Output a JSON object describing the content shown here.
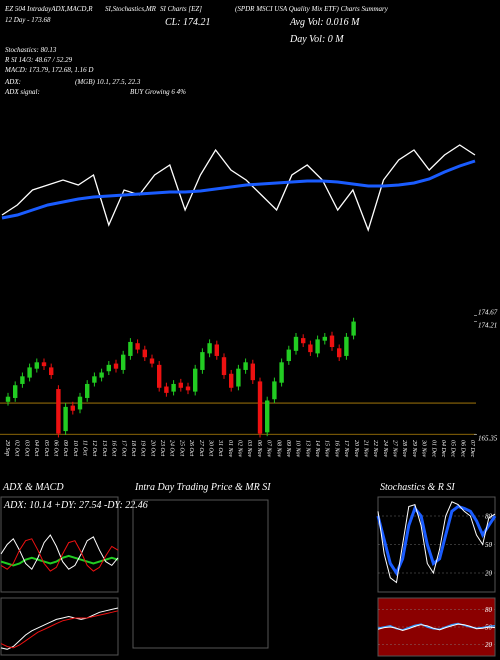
{
  "header": {
    "texts": [
      "EZ 504 IntradayADX,MACD,R",
      "SI,Stochastics,MR",
      "SI Charts [EZ]",
      "(SPDR MSCI USA Quality Mix ETF) Charts Summary",
      "12 Day - 173.68",
      "CL: 174.21",
      "Avg Vol: 0.016 M",
      "Day Vol: 0 M",
      "Stochastics: 80.13",
      "R SI 14/3: 48.67 / 52.29",
      "MACD: 173.79, 172.68, 1.16 D",
      "ADX:",
      "(MGB) 10.1, 27.5, 22.3",
      "ADX  signal:",
      "BUY Growing 6 4%"
    ]
  },
  "chart_data": [
    {
      "type": "line",
      "ylim": [
        163,
        177
      ],
      "series": [
        {
          "color": "#ffffff",
          "line_width": 1.3,
          "values": [
            168.5,
            169.5,
            171,
            171.5,
            172,
            171.5,
            172.5,
            167.5,
            171,
            170.5,
            172.5,
            173.5,
            169,
            172.5,
            175,
            173,
            172,
            170.5,
            169,
            172.5,
            173.5,
            172,
            169,
            171,
            167,
            172,
            174,
            175,
            173,
            174.5,
            175.5,
            174.5
          ]
        },
        {
          "color": "#1a5cff",
          "line_width": 3,
          "values": [
            168.2,
            168.5,
            169,
            169.5,
            169.8,
            170.1,
            170.3,
            170.4,
            170.5,
            170.6,
            170.7,
            170.8,
            170.8,
            170.9,
            171.1,
            171.3,
            171.5,
            171.6,
            171.7,
            171.8,
            171.9,
            171.9,
            171.8,
            171.6,
            171.4,
            171.4,
            171.5,
            171.7,
            172.1,
            172.8,
            173.4,
            173.9
          ]
        }
      ]
    },
    {
      "type": "candlestick",
      "ylim": [
        164.9,
        175.5
      ],
      "yticks": [
        174.67,
        174.21,
        165.35
      ],
      "hlines": [
        167.8,
        165.35
      ],
      "hline_color": "#b8860b",
      "up_color": "#22cc22",
      "down_color": "#ee1111",
      "categories": [
        "29 Sep",
        "02 Oct",
        "03 Oct",
        "04 Oct",
        "05 Oct",
        "06 Oct",
        "09 Oct",
        "10 Oct",
        "11 Oct",
        "12 Oct",
        "13 Oct",
        "16 Oct",
        "17 Oct",
        "18 Oct",
        "19 Oct",
        "20 Oct",
        "23 Oct",
        "24 Oct",
        "25 Oct",
        "26 Oct",
        "27 Oct",
        "30 Oct",
        "31 Oct",
        "01 Nov",
        "02 Nov",
        "03 Nov",
        "06 Nov",
        "07 Nov",
        "08 Nov",
        "09 Nov",
        "10 Nov",
        "13 Nov",
        "14 Nov",
        "15 Nov",
        "16 Nov",
        "17 Nov",
        "20 Nov",
        "21 Nov",
        "22 Nov",
        "24 Nov",
        "27 Nov",
        "28 Nov",
        "29 Nov",
        "30 Nov",
        "01 Dec",
        "04 Dec",
        "05 Dec",
        "06 Dec",
        "07 Dec"
      ],
      "open": [
        167.9,
        168.2,
        169.3,
        169.8,
        170.5,
        171.0,
        170.6,
        168.9,
        165.6,
        167.6,
        167.3,
        168.2,
        169.4,
        169.8,
        170.3,
        170.9,
        170.4,
        171.5,
        172.5,
        172.0,
        171.3,
        170.8,
        169.1,
        168.7,
        169.4,
        169.1,
        168.7,
        170.4,
        171.7,
        172.4,
        171.4,
        170.1,
        169.1,
        170.4,
        170.9,
        169.5,
        165.5,
        168.1,
        169.4,
        171.1,
        171.9,
        172.9,
        172.4,
        171.7,
        172.7,
        173.1,
        172.1,
        171.5,
        173.1
      ],
      "high": [
        168.6,
        169.5,
        170.2,
        170.9,
        171.3,
        171.3,
        170.9,
        169.2,
        167.8,
        167.9,
        168.6,
        169.6,
        170.2,
        170.5,
        171.1,
        171.2,
        171.9,
        172.9,
        172.8,
        172.3,
        171.6,
        171.1,
        169.4,
        169.6,
        169.7,
        169.4,
        170.8,
        172.1,
        172.8,
        172.7,
        171.7,
        170.4,
        170.8,
        171.3,
        171.2,
        169.8,
        168.3,
        169.8,
        171.3,
        172.3,
        173.3,
        173.2,
        172.7,
        173.1,
        173.3,
        173.4,
        172.4,
        173.3,
        174.5
      ],
      "low": [
        167.6,
        167.9,
        169.0,
        169.5,
        170.2,
        170.4,
        169.7,
        165.1,
        165.3,
        166.9,
        167.0,
        167.9,
        169.1,
        169.5,
        170.0,
        170.2,
        170.1,
        171.2,
        171.7,
        171.1,
        170.6,
        168.7,
        168.3,
        168.4,
        168.7,
        168.5,
        168.4,
        170.1,
        171.4,
        171.2,
        169.7,
        168.7,
        168.8,
        170.1,
        169.3,
        165.1,
        165.2,
        167.8,
        169.1,
        170.8,
        171.6,
        172.2,
        171.5,
        171.4,
        172.4,
        171.9,
        171.1,
        171.2,
        172.8
      ],
      "close": [
        168.3,
        169.2,
        169.9,
        170.6,
        171.0,
        170.7,
        170.0,
        165.4,
        167.5,
        167.2,
        168.3,
        169.3,
        169.9,
        170.2,
        170.8,
        170.5,
        171.6,
        172.6,
        172.0,
        171.4,
        170.9,
        169.0,
        168.6,
        169.3,
        169.0,
        168.8,
        170.5,
        171.8,
        172.5,
        171.5,
        170.0,
        169.0,
        170.5,
        171.0,
        169.6,
        165.4,
        168.0,
        169.5,
        171.0,
        172.0,
        173.0,
        172.5,
        171.8,
        172.8,
        173.0,
        172.2,
        171.4,
        173.0,
        174.2
      ]
    },
    {
      "type": "line",
      "title": "ADX & MACD",
      "subtitle": "ADX: 10.14 +DY: 27.54 -DY: 22.46",
      "ylim": [
        0,
        50
      ],
      "series": [
        {
          "color": "#22cc22",
          "line_width": 2,
          "values": [
            16,
            15,
            14,
            15,
            17,
            18,
            17,
            16,
            15,
            16,
            18,
            19,
            18,
            17,
            16,
            15,
            16,
            17,
            18,
            17
          ]
        },
        {
          "color": "#ffffff",
          "line_width": 1,
          "values": [
            20,
            25,
            28,
            22,
            15,
            12,
            18,
            26,
            30,
            24,
            16,
            12,
            14,
            20,
            27,
            29,
            22,
            16,
            14,
            18
          ]
        },
        {
          "color": "#ee1111",
          "line_width": 1,
          "values": [
            14,
            12,
            15,
            22,
            27,
            28,
            22,
            15,
            11,
            13,
            20,
            26,
            27,
            21,
            14,
            11,
            13,
            19,
            24,
            22
          ]
        }
      ]
    },
    {
      "type": "line",
      "ylim": [
        -2,
        2
      ],
      "series": [
        {
          "color": "#ffffff",
          "line_width": 1,
          "values": [
            -1.5,
            -1.6,
            -1.4,
            -1,
            -0.6,
            -0.3,
            -0.1,
            0.1,
            0.3,
            0.5,
            0.6,
            0.7,
            0.6,
            0.5,
            0.6,
            0.8,
            1,
            1.1,
            1.2,
            1.3
          ]
        },
        {
          "color": "#ee1111",
          "line_width": 1,
          "values": [
            -1.2,
            -1.4,
            -1.5,
            -1.3,
            -1,
            -0.7,
            -0.4,
            -0.2,
            0,
            0.2,
            0.4,
            0.5,
            0.6,
            0.6,
            0.6,
            0.7,
            0.8,
            0.9,
            1,
            1.1
          ]
        }
      ]
    },
    {
      "type": "line",
      "title": "Intra Day Trading Price & MR SI"
    },
    {
      "type": "line",
      "title": "Stochastics & R SI",
      "ylim": [
        0,
        100
      ],
      "yticks": [
        80,
        50,
        20
      ],
      "series": [
        {
          "color": "#1a5cff",
          "line_width": 3,
          "values": [
            80,
            55,
            30,
            20,
            35,
            70,
            88,
            80,
            50,
            30,
            35,
            60,
            85,
            90,
            88,
            85,
            75,
            60,
            70,
            80
          ]
        },
        {
          "color": "#ffffff",
          "line_width": 1,
          "values": [
            85,
            40,
            15,
            10,
            50,
            90,
            92,
            70,
            30,
            20,
            45,
            80,
            95,
            92,
            85,
            80,
            60,
            50,
            78,
            82
          ]
        }
      ]
    },
    {
      "type": "line",
      "ylim": [
        0,
        100
      ],
      "yticks": [
        80,
        50,
        20
      ],
      "background": "#8b0000",
      "series": [
        {
          "color": "#3399ff",
          "line_width": 1.5,
          "values": [
            48,
            50,
            52,
            47,
            45,
            49,
            53,
            55,
            50,
            47,
            46,
            50,
            54,
            56,
            53,
            50,
            48,
            49,
            51,
            52
          ]
        },
        {
          "color": "#ffffff",
          "line_width": 1,
          "values": [
            46,
            49,
            50,
            48,
            44,
            47,
            51,
            54,
            52,
            48,
            45,
            49,
            52,
            55,
            54,
            51,
            47,
            48,
            50,
            49
          ]
        }
      ]
    }
  ]
}
